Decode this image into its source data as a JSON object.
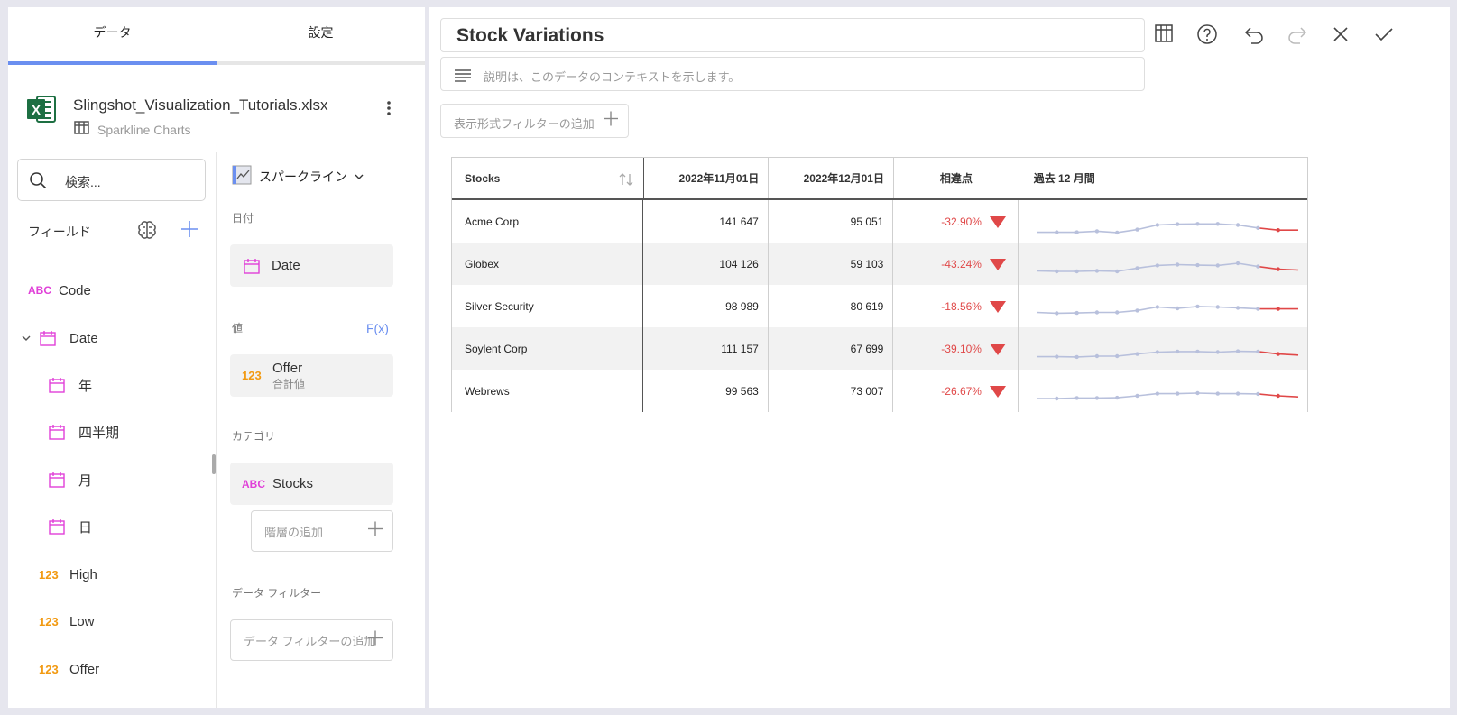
{
  "tabs": {
    "data": "データ",
    "settings": "設定"
  },
  "file": {
    "name": "Slingshot_Visualization_Tutorials.xlsx",
    "sheet": "Sparkline Charts",
    "excel_letter": "X"
  },
  "search": {
    "placeholder": "検索..."
  },
  "fields": {
    "title": "フィールド",
    "items": [
      {
        "type": "ABC",
        "label": "Code"
      },
      {
        "type": "calendar",
        "label": "Date"
      },
      {
        "type": "calendar",
        "label": "年"
      },
      {
        "type": "calendar",
        "label": "四半期"
      },
      {
        "type": "calendar",
        "label": "月"
      },
      {
        "type": "calendar",
        "label": "日"
      },
      {
        "type": "123",
        "label": "High"
      },
      {
        "type": "123",
        "label": "Low"
      },
      {
        "type": "123",
        "label": "Offer"
      }
    ]
  },
  "config": {
    "viz_type": "スパークライン",
    "date_section": "日付",
    "date_field": "Date",
    "value_section": "値",
    "fx_label": "F(x)",
    "value_field": "Offer",
    "value_agg": "合計値",
    "category_section": "カテゴリ",
    "category_field": "Stocks",
    "category_type": "ABC",
    "value_type": "123",
    "add_hierarchy": "階層の追加",
    "data_filter_section": "データ フィルター",
    "add_data_filter": "データ フィルターの追加"
  },
  "editor": {
    "title": "Stock Variations",
    "description_placeholder": "説明は、このデータのコンテキストを示します。",
    "add_viz_filter": "表示形式フィルターの追加"
  },
  "colors": {
    "accent": "#6b8ff0",
    "negative": "#e04848",
    "sparkline": "#b8c0dc",
    "type_abc": "#e040d8",
    "type_num": "#f29a12",
    "excel_green": "#1d6f42"
  },
  "chart_data": {
    "type": "table",
    "columns": [
      "Stocks",
      "2022年11月01日",
      "2022年12月01日",
      "相違点",
      "過去 12 月間"
    ],
    "rows": [
      {
        "stock": "Acme Corp",
        "nov": "141 647",
        "dec": "95 051",
        "diff": "-32.90%",
        "spark": [
          0.92,
          0.92,
          0.92,
          0.88,
          0.93,
          0.82,
          0.65,
          0.62,
          0.61,
          0.61,
          0.65,
          0.76,
          0.84,
          0.84
        ]
      },
      {
        "stock": "Globex",
        "nov": "104 126",
        "dec": "59 103",
        "diff": "-43.24%",
        "spark": [
          0.78,
          0.8,
          0.8,
          0.78,
          0.8,
          0.68,
          0.58,
          0.55,
          0.57,
          0.58,
          0.5,
          0.62,
          0.72,
          0.75
        ]
      },
      {
        "stock": "Silver Security",
        "nov": "98 989",
        "dec": "80 619",
        "diff": "-18.56%",
        "spark": [
          0.75,
          0.78,
          0.77,
          0.75,
          0.75,
          0.68,
          0.55,
          0.6,
          0.53,
          0.55,
          0.58,
          0.62,
          0.62,
          0.62
        ]
      },
      {
        "stock": "Soylent Corp",
        "nov": "111 157",
        "dec": "67 699",
        "diff": "-39.10%",
        "spark": [
          0.82,
          0.82,
          0.83,
          0.8,
          0.8,
          0.72,
          0.65,
          0.63,
          0.63,
          0.65,
          0.62,
          0.63,
          0.72,
          0.76
        ]
      },
      {
        "stock": "Webrews",
        "nov": "99 563",
        "dec": "73 007",
        "diff": "-26.67%",
        "spark": [
          0.8,
          0.8,
          0.78,
          0.78,
          0.77,
          0.7,
          0.62,
          0.62,
          0.6,
          0.62,
          0.62,
          0.63,
          0.7,
          0.74
        ]
      }
    ]
  }
}
